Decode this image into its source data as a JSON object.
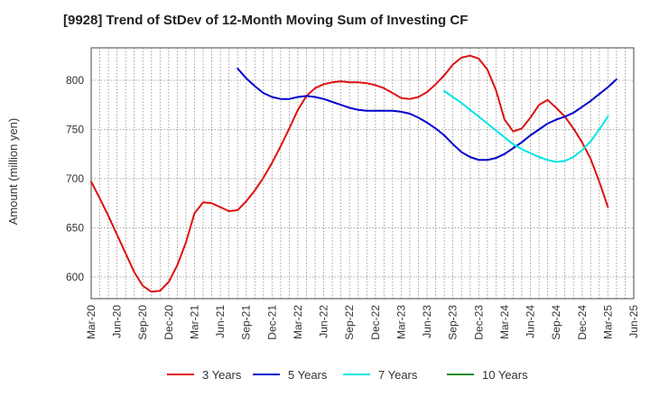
{
  "chart_data": {
    "type": "line",
    "title": "[9928]  Trend of StDev of 12-Month Moving Sum of Investing CF",
    "ylabel": "Amount (million yen)",
    "xlabel": "",
    "ylim": [
      578,
      833
    ],
    "yticks": [
      600,
      650,
      700,
      750,
      800
    ],
    "xtick_labels": [
      "Mar-20",
      "Jun-20",
      "Sep-20",
      "Dec-20",
      "Mar-21",
      "Jun-21",
      "Sep-21",
      "Dec-21",
      "Mar-22",
      "Jun-22",
      "Sep-22",
      "Dec-22",
      "Mar-23",
      "Jun-23",
      "Sep-23",
      "Dec-23",
      "Mar-24",
      "Jun-24",
      "Sep-24",
      "Dec-24",
      "Mar-25",
      "Jun-25"
    ],
    "grid": true,
    "legend_position": "bottom",
    "series": [
      {
        "name": "3 Years",
        "color": "#dd1111",
        "points": [
          [
            "Mar-20",
            697
          ],
          [
            "Apr-20",
            680
          ],
          [
            "May-20",
            662
          ],
          [
            "Jun-20",
            643
          ],
          [
            "Jul-20",
            624
          ],
          [
            "Aug-20",
            605
          ],
          [
            "Sep-20",
            591
          ],
          [
            "Oct-20",
            585
          ],
          [
            "Nov-20",
            586
          ],
          [
            "Dec-20",
            595
          ],
          [
            "Jan-21",
            612
          ],
          [
            "Feb-21",
            635
          ],
          [
            "Mar-21",
            665
          ],
          [
            "Apr-21",
            676
          ],
          [
            "May-21",
            675
          ],
          [
            "Jun-21",
            671
          ],
          [
            "Jul-21",
            667
          ],
          [
            "Aug-21",
            668
          ],
          [
            "Sep-21",
            677
          ],
          [
            "Oct-21",
            688
          ],
          [
            "Nov-21",
            701
          ],
          [
            "Dec-21",
            716
          ],
          [
            "Jan-22",
            733
          ],
          [
            "Feb-22",
            751
          ],
          [
            "Mar-22",
            770
          ],
          [
            "Apr-22",
            784
          ],
          [
            "May-22",
            792
          ],
          [
            "Jun-22",
            796
          ],
          [
            "Jul-22",
            798
          ],
          [
            "Aug-22",
            799
          ],
          [
            "Sep-22",
            798
          ],
          [
            "Oct-22",
            798
          ],
          [
            "Nov-22",
            797
          ],
          [
            "Dec-22",
            795
          ],
          [
            "Jan-23",
            792
          ],
          [
            "Feb-23",
            787
          ],
          [
            "Mar-23",
            782
          ],
          [
            "Apr-23",
            781
          ],
          [
            "May-23",
            783
          ],
          [
            "Jun-23",
            788
          ],
          [
            "Jul-23",
            796
          ],
          [
            "Aug-23",
            805
          ],
          [
            "Sep-23",
            816
          ],
          [
            "Oct-23",
            823
          ],
          [
            "Nov-23",
            825
          ],
          [
            "Dec-23",
            822
          ],
          [
            "Jan-24",
            811
          ],
          [
            "Feb-24",
            790
          ],
          [
            "Mar-24",
            760
          ],
          [
            "Apr-24",
            748
          ],
          [
            "May-24",
            751
          ],
          [
            "Jun-24",
            762
          ],
          [
            "Jul-24",
            775
          ],
          [
            "Aug-24",
            780
          ],
          [
            "Sep-24",
            772
          ],
          [
            "Oct-24",
            763
          ],
          [
            "Nov-24",
            751
          ],
          [
            "Dec-24",
            737
          ],
          [
            "Jan-25",
            720
          ],
          [
            "Feb-25",
            697
          ],
          [
            "Mar-25",
            671
          ]
        ]
      },
      {
        "name": "5 Years",
        "color": "#0000cc",
        "points": [
          [
            "Aug-21",
            812
          ],
          [
            "Sep-21",
            802
          ],
          [
            "Oct-21",
            794
          ],
          [
            "Nov-21",
            787
          ],
          [
            "Dec-21",
            783
          ],
          [
            "Jan-22",
            781
          ],
          [
            "Feb-22",
            781
          ],
          [
            "Mar-22",
            783
          ],
          [
            "Apr-22",
            784
          ],
          [
            "May-22",
            783
          ],
          [
            "Jun-22",
            781
          ],
          [
            "Jul-22",
            778
          ],
          [
            "Aug-22",
            775
          ],
          [
            "Sep-22",
            772
          ],
          [
            "Oct-22",
            770
          ],
          [
            "Nov-22",
            769
          ],
          [
            "Dec-22",
            769
          ],
          [
            "Jan-23",
            769
          ],
          [
            "Feb-23",
            769
          ],
          [
            "Mar-23",
            768
          ],
          [
            "Apr-23",
            766
          ],
          [
            "May-23",
            762
          ],
          [
            "Jun-23",
            757
          ],
          [
            "Jul-23",
            751
          ],
          [
            "Aug-23",
            744
          ],
          [
            "Sep-23",
            735
          ],
          [
            "Oct-23",
            727
          ],
          [
            "Nov-23",
            722
          ],
          [
            "Dec-23",
            719
          ],
          [
            "Jan-24",
            719
          ],
          [
            "Feb-24",
            721
          ],
          [
            "Mar-24",
            725
          ],
          [
            "Apr-24",
            731
          ],
          [
            "May-24",
            737
          ],
          [
            "Jun-24",
            744
          ],
          [
            "Jul-24",
            750
          ],
          [
            "Aug-24",
            756
          ],
          [
            "Sep-24",
            760
          ],
          [
            "Oct-24",
            763
          ],
          [
            "Nov-24",
            767
          ],
          [
            "Dec-24",
            773
          ],
          [
            "Jan-25",
            779
          ],
          [
            "Feb-25",
            786
          ],
          [
            "Mar-25",
            793
          ],
          [
            "Apr-25",
            801
          ]
        ]
      },
      {
        "name": "7 Years",
        "color": "#00e5e5",
        "points": [
          [
            "Aug-23",
            789
          ],
          [
            "Sep-23",
            783
          ],
          [
            "Oct-23",
            777
          ],
          [
            "Nov-23",
            770
          ],
          [
            "Dec-23",
            763
          ],
          [
            "Jan-24",
            756
          ],
          [
            "Feb-24",
            749
          ],
          [
            "Mar-24",
            742
          ],
          [
            "Apr-24",
            735
          ],
          [
            "May-24",
            730
          ],
          [
            "Jun-24",
            726
          ],
          [
            "Jul-24",
            722
          ],
          [
            "Aug-24",
            719
          ],
          [
            "Sep-24",
            717
          ],
          [
            "Oct-24",
            718
          ],
          [
            "Nov-24",
            722
          ],
          [
            "Dec-24",
            729
          ],
          [
            "Jan-25",
            738
          ],
          [
            "Feb-25",
            750
          ],
          [
            "Mar-25",
            763
          ]
        ]
      },
      {
        "name": "10 Years",
        "color": "#228b22",
        "points": []
      }
    ]
  }
}
